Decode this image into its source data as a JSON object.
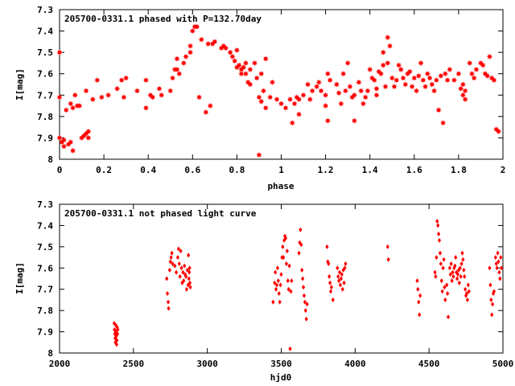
{
  "chart_data": [
    {
      "type": "scatter",
      "title": "205700-0331.1 phased with P=132.70day",
      "xlabel": "phase",
      "ylabel": "I[mag]",
      "xlim": [
        0,
        2
      ],
      "ylim": [
        7.3,
        8
      ],
      "y_inverted": true,
      "xticks": [
        "0",
        "0.2",
        "0.4",
        "0.6",
        "0.8",
        "1",
        "1.2",
        "1.4",
        "1.6",
        "1.8",
        "2"
      ],
      "yticks": [
        "7.3",
        "7.4",
        "7.5",
        "7.6",
        "7.7",
        "7.8",
        "7.9",
        "8"
      ],
      "marker_color": "#ff0000",
      "marker": "star",
      "points": [
        [
          0.0,
          7.5
        ],
        [
          0.0,
          7.71
        ],
        [
          0.0,
          7.9
        ],
        [
          0.01,
          7.92
        ],
        [
          0.02,
          7.91
        ],
        [
          0.02,
          7.94
        ],
        [
          0.03,
          7.77
        ],
        [
          0.04,
          7.93
        ],
        [
          0.05,
          7.74
        ],
        [
          0.05,
          7.92
        ],
        [
          0.06,
          7.96
        ],
        [
          0.06,
          7.76
        ],
        [
          0.07,
          7.7
        ],
        [
          0.08,
          7.75
        ],
        [
          0.09,
          7.75
        ],
        [
          0.1,
          7.9
        ],
        [
          0.11,
          7.89
        ],
        [
          0.12,
          7.68
        ],
        [
          0.12,
          7.88
        ],
        [
          0.13,
          7.87
        ],
        [
          0.13,
          7.9
        ],
        [
          0.15,
          7.72
        ],
        [
          0.17,
          7.63
        ],
        [
          0.19,
          7.71
        ],
        [
          0.22,
          7.7
        ],
        [
          0.26,
          7.67
        ],
        [
          0.28,
          7.63
        ],
        [
          0.29,
          7.71
        ],
        [
          0.3,
          7.62
        ],
        [
          0.35,
          7.68
        ],
        [
          0.39,
          7.63
        ],
        [
          0.39,
          7.76
        ],
        [
          0.41,
          7.7
        ],
        [
          0.42,
          7.71
        ],
        [
          0.45,
          7.67
        ],
        [
          0.46,
          7.7
        ],
        [
          0.5,
          7.68
        ],
        [
          0.51,
          7.62
        ],
        [
          0.52,
          7.58
        ],
        [
          0.53,
          7.53
        ],
        [
          0.53,
          7.58
        ],
        [
          0.54,
          7.6
        ],
        [
          0.56,
          7.55
        ],
        [
          0.57,
          7.52
        ],
        [
          0.59,
          7.5
        ],
        [
          0.59,
          7.47
        ],
        [
          0.6,
          7.4
        ],
        [
          0.61,
          7.38
        ],
        [
          0.62,
          7.38
        ],
        [
          0.63,
          7.71
        ],
        [
          0.64,
          7.44
        ],
        [
          0.66,
          7.78
        ],
        [
          0.67,
          7.46
        ],
        [
          0.68,
          7.75
        ],
        [
          0.69,
          7.46
        ],
        [
          0.7,
          7.45
        ],
        [
          0.73,
          7.48
        ],
        [
          0.74,
          7.47
        ],
        [
          0.75,
          7.48
        ],
        [
          0.77,
          7.5
        ],
        [
          0.78,
          7.52
        ],
        [
          0.79,
          7.54
        ],
        [
          0.8,
          7.57
        ],
        [
          0.8,
          7.49
        ],
        [
          0.81,
          7.56
        ],
        [
          0.82,
          7.58
        ],
        [
          0.82,
          7.6
        ],
        [
          0.83,
          7.57
        ],
        [
          0.84,
          7.55
        ],
        [
          0.84,
          7.6
        ],
        [
          0.85,
          7.64
        ],
        [
          0.86,
          7.58
        ],
        [
          0.86,
          7.65
        ],
        [
          0.88,
          7.55
        ],
        [
          0.89,
          7.62
        ],
        [
          0.9,
          7.71
        ],
        [
          0.9,
          7.98
        ],
        [
          0.91,
          7.6
        ],
        [
          0.91,
          7.73
        ],
        [
          0.92,
          7.68
        ],
        [
          0.93,
          7.53
        ],
        [
          0.93,
          7.76
        ],
        [
          0.95,
          7.71
        ],
        [
          0.96,
          7.64
        ],
        [
          0.98,
          7.72
        ],
        [
          1.0,
          7.74
        ],
        [
          1.02,
          7.76
        ],
        [
          1.04,
          7.72
        ],
        [
          1.05,
          7.83
        ],
        [
          1.06,
          7.74
        ],
        [
          1.07,
          7.71
        ],
        [
          1.08,
          7.72
        ],
        [
          1.08,
          7.79
        ],
        [
          1.1,
          7.7
        ],
        [
          1.12,
          7.65
        ],
        [
          1.13,
          7.72
        ],
        [
          1.14,
          7.68
        ],
        [
          1.16,
          7.66
        ],
        [
          1.17,
          7.64
        ],
        [
          1.18,
          7.68
        ],
        [
          1.2,
          7.75
        ],
        [
          1.2,
          7.7
        ],
        [
          1.21,
          7.6
        ],
        [
          1.21,
          7.82
        ],
        [
          1.22,
          7.63
        ],
        [
          1.25,
          7.65
        ],
        [
          1.26,
          7.69
        ],
        [
          1.27,
          7.74
        ],
        [
          1.28,
          7.6
        ],
        [
          1.29,
          7.68
        ],
        [
          1.3,
          7.55
        ],
        [
          1.31,
          7.66
        ],
        [
          1.32,
          7.71
        ],
        [
          1.33,
          7.7
        ],
        [
          1.33,
          7.82
        ],
        [
          1.35,
          7.64
        ],
        [
          1.36,
          7.68
        ],
        [
          1.37,
          7.74
        ],
        [
          1.38,
          7.71
        ],
        [
          1.39,
          7.68
        ],
        [
          1.4,
          7.58
        ],
        [
          1.41,
          7.62
        ],
        [
          1.42,
          7.63
        ],
        [
          1.43,
          7.67
        ],
        [
          1.43,
          7.7
        ],
        [
          1.44,
          7.59
        ],
        [
          1.45,
          7.6
        ],
        [
          1.46,
          7.5
        ],
        [
          1.46,
          7.56
        ],
        [
          1.47,
          7.66
        ],
        [
          1.48,
          7.55
        ],
        [
          1.48,
          7.43
        ],
        [
          1.49,
          7.47
        ],
        [
          1.5,
          7.62
        ],
        [
          1.51,
          7.66
        ],
        [
          1.52,
          7.63
        ],
        [
          1.53,
          7.56
        ],
        [
          1.54,
          7.58
        ],
        [
          1.55,
          7.62
        ],
        [
          1.56,
          7.65
        ],
        [
          1.57,
          7.6
        ],
        [
          1.58,
          7.59
        ],
        [
          1.59,
          7.66
        ],
        [
          1.6,
          7.62
        ],
        [
          1.61,
          7.68
        ],
        [
          1.62,
          7.61
        ],
        [
          1.63,
          7.55
        ],
        [
          1.64,
          7.63
        ],
        [
          1.65,
          7.66
        ],
        [
          1.66,
          7.6
        ],
        [
          1.67,
          7.62
        ],
        [
          1.68,
          7.65
        ],
        [
          1.69,
          7.68
        ],
        [
          1.7,
          7.63
        ],
        [
          1.71,
          7.77
        ],
        [
          1.72,
          7.61
        ],
        [
          1.73,
          7.83
        ],
        [
          1.74,
          7.6
        ],
        [
          1.75,
          7.63
        ],
        [
          1.76,
          7.58
        ],
        [
          1.78,
          7.63
        ],
        [
          1.8,
          7.6
        ],
        [
          1.81,
          7.67
        ],
        [
          1.82,
          7.65
        ],
        [
          1.82,
          7.7
        ],
        [
          1.83,
          7.68
        ],
        [
          1.83,
          7.72
        ],
        [
          1.85,
          7.55
        ],
        [
          1.86,
          7.6
        ],
        [
          1.87,
          7.62
        ],
        [
          1.88,
          7.58
        ],
        [
          1.9,
          7.55
        ],
        [
          1.91,
          7.56
        ],
        [
          1.92,
          7.6
        ],
        [
          1.93,
          7.61
        ],
        [
          1.94,
          7.52
        ],
        [
          1.95,
          7.62
        ],
        [
          1.96,
          7.63
        ],
        [
          1.97,
          7.86
        ],
        [
          1.98,
          7.87
        ]
      ]
    },
    {
      "type": "scatter",
      "title": "205700-0331.1 not phased light curve",
      "xlabel": "hjd0",
      "ylabel": "I[mag]",
      "xlim": [
        2000,
        5000
      ],
      "ylim": [
        7.3,
        8
      ],
      "y_inverted": true,
      "xticks": [
        "2000",
        "2500",
        "3000",
        "3500",
        "4000",
        "4500",
        "5000"
      ],
      "yticks": [
        "7.3",
        "7.4",
        "7.5",
        "7.6",
        "7.7",
        "7.8",
        "7.9",
        "8"
      ],
      "marker_color": "#ff0000",
      "marker": "diamond",
      "points": [
        [
          2370,
          7.86
        ],
        [
          2372,
          7.89
        ],
        [
          2374,
          7.91
        ],
        [
          2376,
          7.93
        ],
        [
          2378,
          7.95
        ],
        [
          2380,
          7.9
        ],
        [
          2382,
          7.87
        ],
        [
          2384,
          7.92
        ],
        [
          2386,
          7.96
        ],
        [
          2388,
          7.94
        ],
        [
          2390,
          7.88
        ],
        [
          2392,
          7.91
        ],
        [
          2394,
          7.89
        ],
        [
          2725,
          7.65
        ],
        [
          2730,
          7.72
        ],
        [
          2735,
          7.76
        ],
        [
          2738,
          7.79
        ],
        [
          2745,
          7.61
        ],
        [
          2750,
          7.57
        ],
        [
          2755,
          7.55
        ],
        [
          2760,
          7.53
        ],
        [
          2765,
          7.58
        ],
        [
          2780,
          7.59
        ],
        [
          2790,
          7.62
        ],
        [
          2800,
          7.55
        ],
        [
          2805,
          7.51
        ],
        [
          2810,
          7.58
        ],
        [
          2815,
          7.64
        ],
        [
          2820,
          7.52
        ],
        [
          2825,
          7.6
        ],
        [
          2830,
          7.67
        ],
        [
          2835,
          7.62
        ],
        [
          2840,
          7.66
        ],
        [
          2845,
          7.59
        ],
        [
          2850,
          7.63
        ],
        [
          2855,
          7.64
        ],
        [
          2860,
          7.7
        ],
        [
          2865,
          7.61
        ],
        [
          2870,
          7.68
        ],
        [
          2872,
          7.54
        ],
        [
          2875,
          7.65
        ],
        [
          2878,
          7.62
        ],
        [
          2880,
          7.6
        ],
        [
          2882,
          7.67
        ],
        [
          2885,
          7.69
        ],
        [
          3445,
          7.76
        ],
        [
          3455,
          7.67
        ],
        [
          3460,
          7.62
        ],
        [
          3465,
          7.7
        ],
        [
          3470,
          7.68
        ],
        [
          3475,
          7.6
        ],
        [
          3480,
          7.66
        ],
        [
          3485,
          7.72
        ],
        [
          3490,
          7.76
        ],
        [
          3495,
          7.68
        ],
        [
          3500,
          7.63
        ],
        [
          3505,
          7.55
        ],
        [
          3510,
          7.5
        ],
        [
          3515,
          7.55
        ],
        [
          3520,
          7.47
        ],
        [
          3525,
          7.45
        ],
        [
          3530,
          7.46
        ],
        [
          3535,
          7.58
        ],
        [
          3540,
          7.52
        ],
        [
          3545,
          7.66
        ],
        [
          3550,
          7.7
        ],
        [
          3555,
          7.59
        ],
        [
          3560,
          7.98
        ],
        [
          3565,
          7.71
        ],
        [
          3570,
          7.66
        ],
        [
          3620,
          7.53
        ],
        [
          3625,
          7.48
        ],
        [
          3630,
          7.42
        ],
        [
          3635,
          7.49
        ],
        [
          3640,
          7.61
        ],
        [
          3645,
          7.65
        ],
        [
          3650,
          7.69
        ],
        [
          3655,
          7.73
        ],
        [
          3660,
          7.76
        ],
        [
          3665,
          7.8
        ],
        [
          3670,
          7.84
        ],
        [
          3675,
          7.77
        ],
        [
          3810,
          7.5
        ],
        [
          3815,
          7.57
        ],
        [
          3820,
          7.58
        ],
        [
          3825,
          7.64
        ],
        [
          3830,
          7.67
        ],
        [
          3835,
          7.71
        ],
        [
          3840,
          7.69
        ],
        [
          3850,
          7.75
        ],
        [
          3880,
          7.6
        ],
        [
          3885,
          7.64
        ],
        [
          3890,
          7.66
        ],
        [
          3895,
          7.62
        ],
        [
          3900,
          7.68
        ],
        [
          3905,
          7.65
        ],
        [
          3910,
          7.63
        ],
        [
          3915,
          7.7
        ],
        [
          3920,
          7.61
        ],
        [
          3925,
          7.67
        ],
        [
          3930,
          7.6
        ],
        [
          3935,
          7.58
        ],
        [
          4220,
          7.5
        ],
        [
          4225,
          7.56
        ],
        [
          4420,
          7.66
        ],
        [
          4425,
          7.7
        ],
        [
          4430,
          7.76
        ],
        [
          4435,
          7.82
        ],
        [
          4440,
          7.73
        ],
        [
          4540,
          7.62
        ],
        [
          4545,
          7.64
        ],
        [
          4550,
          7.55
        ],
        [
          4555,
          7.38
        ],
        [
          4560,
          7.4
        ],
        [
          4565,
          7.44
        ],
        [
          4570,
          7.47
        ],
        [
          4575,
          7.53
        ],
        [
          4580,
          7.58
        ],
        [
          4585,
          7.66
        ],
        [
          4590,
          7.71
        ],
        [
          4595,
          7.6
        ],
        [
          4600,
          7.56
        ],
        [
          4605,
          7.69
        ],
        [
          4610,
          7.75
        ],
        [
          4620,
          7.68
        ],
        [
          4625,
          7.72
        ],
        [
          4630,
          7.83
        ],
        [
          4640,
          7.6
        ],
        [
          4645,
          7.63
        ],
        [
          4650,
          7.58
        ],
        [
          4655,
          7.66
        ],
        [
          4660,
          7.62
        ],
        [
          4665,
          7.64
        ],
        [
          4670,
          7.6
        ],
        [
          4675,
          7.59
        ],
        [
          4680,
          7.55
        ],
        [
          4685,
          7.62
        ],
        [
          4690,
          7.65
        ],
        [
          4695,
          7.63
        ],
        [
          4700,
          7.61
        ],
        [
          4705,
          7.67
        ],
        [
          4710,
          7.6
        ],
        [
          4715,
          7.64
        ],
        [
          4720,
          7.58
        ],
        [
          4725,
          7.53
        ],
        [
          4730,
          7.56
        ],
        [
          4735,
          7.61
        ],
        [
          4740,
          7.64
        ],
        [
          4745,
          7.7
        ],
        [
          4750,
          7.73
        ],
        [
          4755,
          7.72
        ],
        [
          4760,
          7.75
        ],
        [
          4765,
          7.68
        ],
        [
          4770,
          7.71
        ],
        [
          4910,
          7.6
        ],
        [
          4915,
          7.68
        ],
        [
          4920,
          7.75
        ],
        [
          4925,
          7.82
        ],
        [
          4930,
          7.77
        ],
        [
          4935,
          7.72
        ],
        [
          4940,
          7.71
        ],
        [
          4950,
          7.55
        ],
        [
          4955,
          7.58
        ],
        [
          4960,
          7.6
        ],
        [
          4965,
          7.53
        ],
        [
          4970,
          7.57
        ],
        [
          4975,
          7.62
        ],
        [
          4980,
          7.65
        ],
        [
          4985,
          7.55
        ],
        [
          4990,
          7.6
        ]
      ]
    }
  ]
}
